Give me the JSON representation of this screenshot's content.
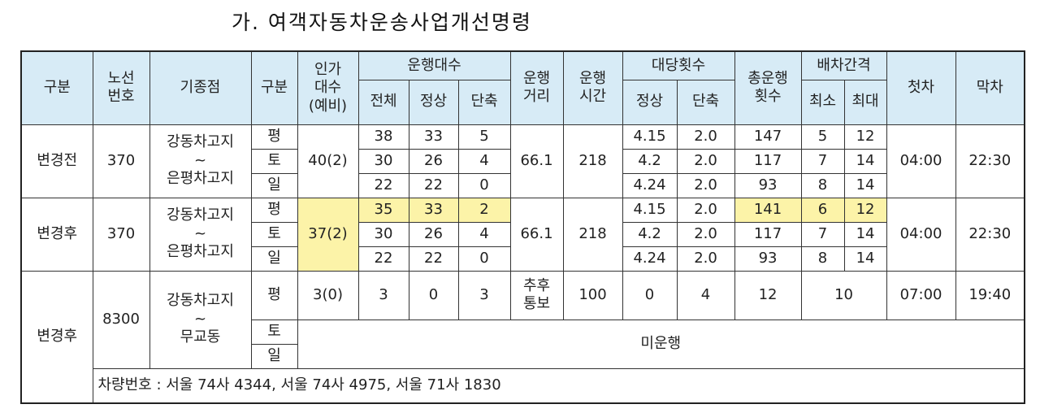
{
  "title": "가. 여객자동차운송사업개선명령",
  "header": {
    "division": "구분",
    "route": "노선\n번호",
    "endpoints": "기종점",
    "day": "구분",
    "approved": "인가\n대수\n(예비)",
    "vehicles": "운행대수",
    "vehicles_total": "전체",
    "vehicles_normal": "정상",
    "vehicles_short": "단축",
    "distance": "운행\n거리",
    "time": "운행\n시간",
    "trips_per": "대당횟수",
    "trips_normal": "정상",
    "trips_short": "단축",
    "trips": "총운행\n횟수",
    "interval": "배차간격",
    "interval_min": "최소",
    "interval_max": "최대",
    "first": "첫차",
    "last": "막차"
  },
  "groups": [
    {
      "label": "변경전",
      "route": "370",
      "endpoints": "강동차고지\n~\n은평차고지",
      "approved": "40(2)",
      "distance": "66.1",
      "time": "218",
      "first": "04:00",
      "last": "22:30",
      "rows": [
        {
          "day": "평",
          "total": "38",
          "normal": "33",
          "short": "5",
          "trip_normal": "4.15",
          "trip_short": "2.0",
          "trips": "147",
          "interval_min": "5",
          "interval_max": "12"
        },
        {
          "day": "토",
          "total": "30",
          "normal": "26",
          "short": "4",
          "trip_normal": "4.2",
          "trip_short": "2.0",
          "trips": "117",
          "interval_min": "7",
          "interval_max": "14"
        },
        {
          "day": "일",
          "total": "22",
          "normal": "22",
          "short": "0",
          "trip_normal": "4.24",
          "trip_short": "2.0",
          "trips": "93",
          "interval_min": "8",
          "interval_max": "14"
        }
      ]
    },
    {
      "label": "변경후",
      "route": "370",
      "endpoints": "강동차고지\n~\n은평차고지",
      "approved": "37(2)",
      "distance": "66.1",
      "time": "218",
      "first": "04:00",
      "last": "22:30",
      "rows": [
        {
          "day": "평",
          "total": "35",
          "normal": "33",
          "short": "2",
          "trip_normal": "4.15",
          "trip_short": "2.0",
          "trips": "141",
          "interval_min": "6",
          "interval_max": "12"
        },
        {
          "day": "토",
          "total": "30",
          "normal": "26",
          "short": "4",
          "trip_normal": "4.2",
          "trip_short": "2.0",
          "trips": "117",
          "interval_min": "7",
          "interval_max": "14"
        },
        {
          "day": "일",
          "total": "22",
          "normal": "22",
          "short": "0",
          "trip_normal": "4.24",
          "trip_short": "2.0",
          "trips": "93",
          "interval_min": "8",
          "interval_max": "14"
        }
      ]
    },
    {
      "label": "변경후",
      "route": "8300",
      "endpoints": "강동차고지\n~\n무교동",
      "note": "미운행",
      "rows": [
        {
          "day": "평",
          "approved": "3(0)",
          "total": "3",
          "normal": "0",
          "short": "3",
          "distance": "추후\n통보",
          "time": "100",
          "trip_normal": "0",
          "trip_short": "4",
          "trips": "12",
          "interval": "10",
          "first": "07:00",
          "last": "19:40"
        },
        {
          "day": "토"
        },
        {
          "day": "일"
        }
      ]
    }
  ],
  "footnote": "차량번호 : 서울 74사 4344, 서울 74사 4975, 서울 71사 1830"
}
